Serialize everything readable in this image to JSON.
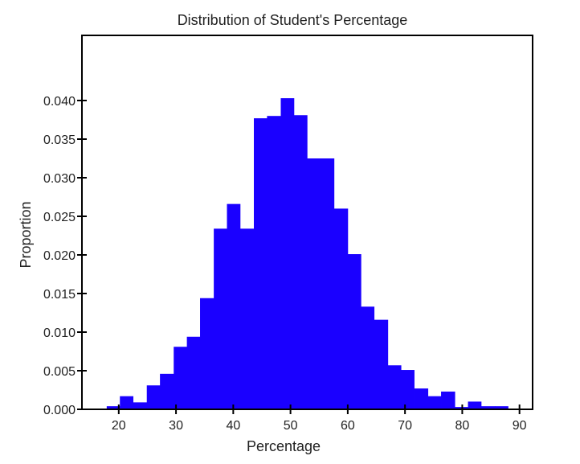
{
  "chart_data": {
    "type": "bar",
    "title": "Distribution of Student's Percentage",
    "xlabel": "Percentage",
    "ylabel": "Proportion",
    "xlim": [
      15,
      92
    ],
    "ylim": [
      0,
      0.0505
    ],
    "x_ticks": [
      20,
      30,
      40,
      50,
      60,
      70,
      80,
      90
    ],
    "x_tick_labels": [
      "20",
      "30",
      "40",
      "50",
      "60",
      "70",
      "80",
      "90"
    ],
    "y_ticks": [
      0.0,
      0.005,
      0.01,
      0.015,
      0.02,
      0.025,
      0.03,
      0.035,
      0.04
    ],
    "y_tick_labels": [
      "0.000",
      "0.005",
      "0.010",
      "0.015",
      "0.020",
      "0.025",
      "0.030",
      "0.035",
      "0.040"
    ],
    "bar_color": "#1a00ff",
    "grid": false,
    "bins": [
      {
        "x0": 17.9,
        "x1": 20.2,
        "value": 0.0004
      },
      {
        "x0": 20.2,
        "x1": 22.5,
        "value": 0.0017
      },
      {
        "x0": 22.5,
        "x1": 24.9,
        "value": 0.0009
      },
      {
        "x0": 24.9,
        "x1": 27.2,
        "value": 0.0031
      },
      {
        "x0": 27.2,
        "x1": 29.6,
        "value": 0.0046
      },
      {
        "x0": 29.6,
        "x1": 31.9,
        "value": 0.0081
      },
      {
        "x0": 31.9,
        "x1": 34.2,
        "value": 0.0094
      },
      {
        "x0": 34.2,
        "x1": 36.6,
        "value": 0.0144
      },
      {
        "x0": 36.6,
        "x1": 38.9,
        "value": 0.0234
      },
      {
        "x0": 38.9,
        "x1": 41.2,
        "value": 0.0266
      },
      {
        "x0": 41.2,
        "x1": 43.6,
        "value": 0.0234
      },
      {
        "x0": 43.6,
        "x1": 45.9,
        "value": 0.0377
      },
      {
        "x0": 45.9,
        "x1": 48.3,
        "value": 0.038
      },
      {
        "x0": 48.3,
        "x1": 50.6,
        "value": 0.0403
      },
      {
        "x0": 50.6,
        "x1": 52.9,
        "value": 0.0381
      },
      {
        "x0": 52.9,
        "x1": 55.3,
        "value": 0.0325
      },
      {
        "x0": 55.3,
        "x1": 57.6,
        "value": 0.0325
      },
      {
        "x0": 57.6,
        "x1": 60.0,
        "value": 0.026
      },
      {
        "x0": 60.0,
        "x1": 62.3,
        "value": 0.0201
      },
      {
        "x0": 62.3,
        "x1": 64.6,
        "value": 0.0133
      },
      {
        "x0": 64.6,
        "x1": 67.0,
        "value": 0.0116
      },
      {
        "x0": 67.0,
        "x1": 69.3,
        "value": 0.0057
      },
      {
        "x0": 69.3,
        "x1": 71.6,
        "value": 0.0051
      },
      {
        "x0": 71.6,
        "x1": 74.0,
        "value": 0.0027
      },
      {
        "x0": 74.0,
        "x1": 76.3,
        "value": 0.0017
      },
      {
        "x0": 76.3,
        "x1": 78.7,
        "value": 0.0023
      },
      {
        "x0": 78.7,
        "x1": 81.0,
        "value": 0.0003
      },
      {
        "x0": 81.0,
        "x1": 83.3,
        "value": 0.001
      },
      {
        "x0": 83.3,
        "x1": 85.7,
        "value": 0.0004
      },
      {
        "x0": 85.7,
        "x1": 88.0,
        "value": 0.0004
      }
    ]
  }
}
